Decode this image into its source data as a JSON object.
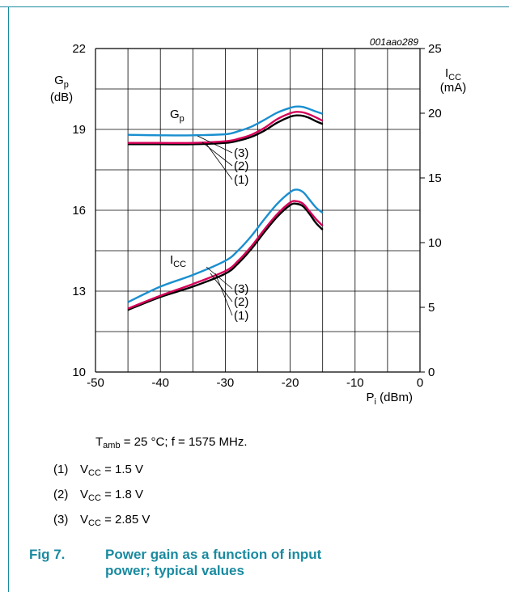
{
  "figure_code": "001aao289",
  "chart_data": {
    "type": "line",
    "x_axis": {
      "ticks": [
        "-50",
        "-40",
        "-30",
        "-20",
        "-10",
        "0"
      ],
      "range": [
        -50,
        0
      ],
      "label_main": "P",
      "label_sub": "i",
      "label_unit": " (dBm)"
    },
    "y_left": {
      "ticks": [
        "10",
        "13",
        "16",
        "19",
        "22"
      ],
      "range": [
        10,
        22
      ],
      "label_main": "G",
      "label_sub": "p",
      "label_unit": "(dB)"
    },
    "y_right": {
      "ticks": [
        "0",
        "5",
        "10",
        "15",
        "20",
        "25"
      ],
      "range": [
        0,
        25
      ],
      "label_main": "I",
      "label_sub": "CC",
      "label_unit": "(mA)"
    },
    "grid": true,
    "curve_labels": {
      "gp": {
        "main": "G",
        "sub": "p"
      },
      "icc": {
        "main": "I",
        "sub": "CC"
      },
      "markers": [
        "(1)",
        "(2)",
        "(3)"
      ]
    },
    "gp_series": [
      {
        "name": "(1)",
        "color": "#000000",
        "x": [
          -45,
          -40,
          -35,
          -30,
          -28,
          -26,
          -24,
          -22,
          -20,
          -19,
          -18,
          -17,
          -16,
          -15
        ],
        "y": [
          18.45,
          18.45,
          18.45,
          18.5,
          18.58,
          18.72,
          18.95,
          19.25,
          19.47,
          19.52,
          19.5,
          19.42,
          19.3,
          19.2
        ]
      },
      {
        "name": "(2)",
        "color": "#d6005a",
        "x": [
          -45,
          -40,
          -35,
          -30,
          -28,
          -26,
          -24,
          -22,
          -20,
          -19,
          -18,
          -17,
          -16,
          -15
        ],
        "y": [
          18.5,
          18.5,
          18.5,
          18.56,
          18.65,
          18.8,
          19.05,
          19.38,
          19.6,
          19.65,
          19.63,
          19.55,
          19.44,
          19.32
        ]
      },
      {
        "name": "(3)",
        "color": "#1a8fd0",
        "x": [
          -45,
          -40,
          -35,
          -30,
          -28,
          -26,
          -24,
          -22,
          -20,
          -19,
          -18,
          -17,
          -16,
          -15
        ],
        "y": [
          18.8,
          18.78,
          18.78,
          18.82,
          18.93,
          19.1,
          19.35,
          19.62,
          19.8,
          19.85,
          19.83,
          19.75,
          19.66,
          19.58
        ]
      }
    ],
    "icc_series": [
      {
        "name": "(1)",
        "color": "#000000",
        "x": [
          -45,
          -40,
          -35,
          -30,
          -28,
          -26,
          -24,
          -22,
          -20,
          -19,
          -18,
          -17,
          -16,
          -15
        ],
        "y": [
          4.8,
          5.8,
          6.6,
          7.6,
          8.4,
          9.5,
          10.8,
          12.0,
          12.9,
          13.0,
          12.8,
          12.2,
          11.5,
          11.0
        ]
      },
      {
        "name": "(2)",
        "color": "#d6005a",
        "x": [
          -45,
          -40,
          -35,
          -30,
          -28,
          -26,
          -24,
          -22,
          -20,
          -19,
          -18,
          -17,
          -16,
          -15
        ],
        "y": [
          4.9,
          5.9,
          6.8,
          7.8,
          8.6,
          9.7,
          11.0,
          12.2,
          13.1,
          13.2,
          13.0,
          12.4,
          11.8,
          11.3
        ]
      },
      {
        "name": "(3)",
        "color": "#1a8fd0",
        "x": [
          -45,
          -40,
          -35,
          -30,
          -28,
          -26,
          -24,
          -22,
          -20,
          -19,
          -18,
          -17,
          -16,
          -15
        ],
        "y": [
          5.4,
          6.6,
          7.5,
          8.6,
          9.4,
          10.5,
          11.8,
          13.0,
          13.9,
          14.1,
          13.9,
          13.3,
          12.7,
          12.3
        ]
      }
    ]
  },
  "conditions": {
    "t_main": "T",
    "t_sub": "amb",
    "rest": " = 25 °C; f = 1575 MHz."
  },
  "legend": [
    {
      "num": "(1)",
      "v_main": "V",
      "v_sub": "CC",
      "value": " = 1.5 V"
    },
    {
      "num": "(2)",
      "v_main": "V",
      "v_sub": "CC",
      "value": " = 1.8 V"
    },
    {
      "num": "(3)",
      "v_main": "V",
      "v_sub": "CC",
      "value": " = 2.85 V"
    }
  ],
  "caption": {
    "fig": "Fig 7.",
    "text": "Power gain as a function of input power; typical values"
  }
}
